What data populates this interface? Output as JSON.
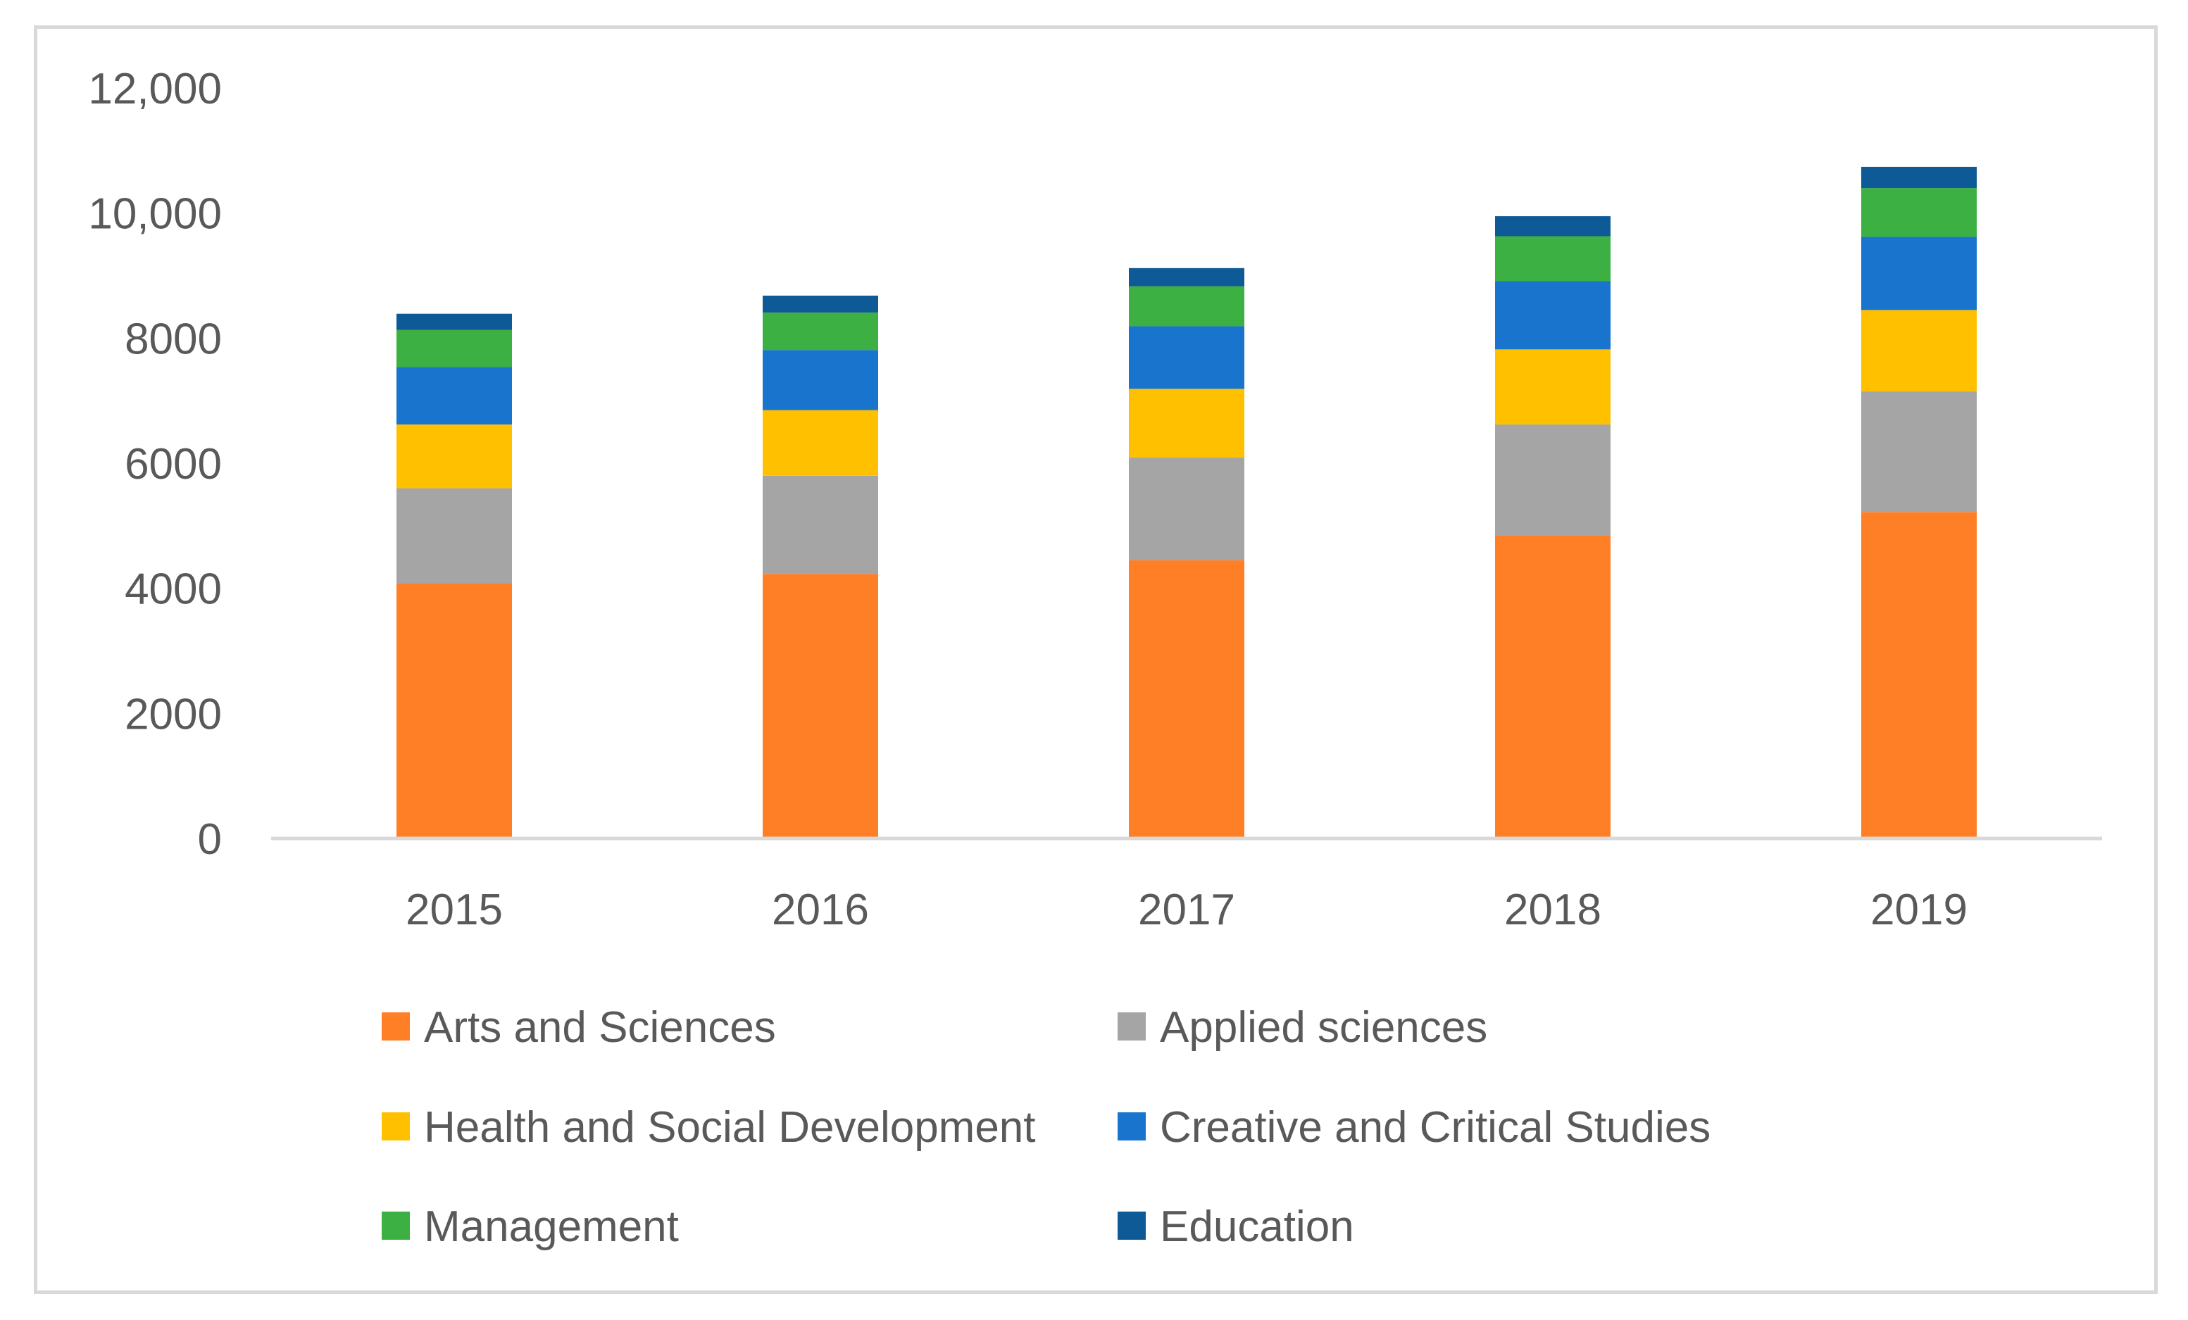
{
  "chart_data": {
    "type": "bar",
    "stacked": true,
    "categories": [
      "2015",
      "2016",
      "2017",
      "2018",
      "2019"
    ],
    "series": [
      {
        "name": "Arts and Sciences",
        "color": "#ff7f27",
        "values": [
          4080,
          4230,
          4450,
          4850,
          5220
        ]
      },
      {
        "name": "Applied sciences",
        "color": "#a5a5a5",
        "values": [
          1520,
          1570,
          1640,
          1770,
          1930
        ]
      },
      {
        "name": "Health and Social Development",
        "color": "#ffc000",
        "values": [
          1020,
          1050,
          1100,
          1200,
          1300
        ]
      },
      {
        "name": "Creative and Critical Studies",
        "color": "#1874cd",
        "values": [
          920,
          960,
          1000,
          1090,
          1170
        ]
      },
      {
        "name": "Management",
        "color": "#3cb043",
        "values": [
          590,
          600,
          640,
          720,
          780
        ]
      },
      {
        "name": "Education",
        "color": "#0e5a96",
        "values": [
          260,
          270,
          290,
          320,
          340
        ]
      }
    ],
    "yticks": [
      "0",
      "2000",
      "4000",
      "6000",
      "8000",
      "10,000",
      "12,000"
    ],
    "ylim": [
      0,
      12000
    ],
    "grid": false,
    "legend_position": "bottom",
    "title": "",
    "xlabel": "",
    "ylabel": ""
  }
}
